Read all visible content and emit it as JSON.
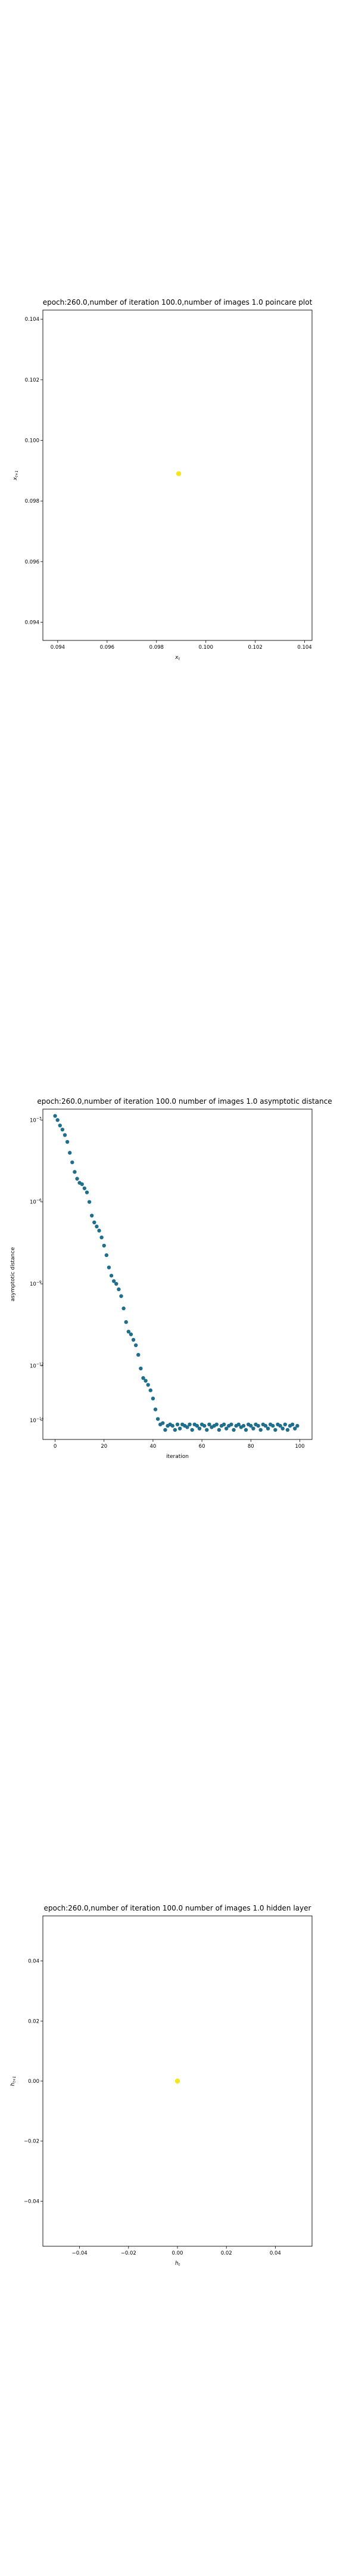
{
  "chart_data": [
    {
      "type": "scatter",
      "title": "epoch:260.0,number of iteration 100.0,number of images 1.0 poincare plot",
      "xlabel": "$x_t$",
      "ylabel": "$x_{t+1}$",
      "xlim": [
        0.0934,
        0.1043
      ],
      "ylim": [
        0.0934,
        0.1043
      ],
      "xticks": [
        "0.094",
        "0.096",
        "0.098",
        "0.100",
        "0.102",
        "0.104"
      ],
      "yticks": [
        "0.094",
        "0.096",
        "0.098",
        "0.100",
        "0.102",
        "0.104"
      ],
      "xtick_values": [
        0.094,
        0.096,
        0.098,
        0.1,
        0.102,
        0.104
      ],
      "ytick_values": [
        0.094,
        0.096,
        0.098,
        0.1,
        0.102,
        0.104
      ],
      "points": [
        {
          "x": 0.0989,
          "y": 0.0989
        }
      ],
      "point_color": "#f5e61a"
    },
    {
      "type": "scatter",
      "title": "epoch:260.0,number of iteration 100.0  number of images 1.0 asymptotic distance",
      "xlabel": "iteration",
      "ylabel": "asymptotic distance",
      "y_scale": "log",
      "xlim": [
        -5,
        105
      ],
      "ylim_log10": [
        -14.7,
        -2.6
      ],
      "xticks": [
        "0",
        "20",
        "40",
        "60",
        "80",
        "100"
      ],
      "xtick_values": [
        0,
        20,
        40,
        60,
        80,
        100
      ],
      "ytick_exponents": [
        -3,
        -6,
        -9,
        -12,
        -14
      ],
      "ytick_base": "10",
      "x": [
        0,
        1,
        2,
        3,
        4,
        5,
        6,
        7,
        8,
        9,
        10,
        11,
        12,
        13,
        14,
        15,
        16,
        17,
        18,
        19,
        20,
        21,
        22,
        23,
        24,
        25,
        26,
        27,
        28,
        29,
        30,
        31,
        32,
        33,
        34,
        35,
        36,
        37,
        38,
        39,
        40,
        41,
        42,
        43,
        44,
        45,
        46,
        47,
        48,
        49,
        50,
        51,
        52,
        53,
        54,
        55,
        56,
        57,
        58,
        59,
        60,
        61,
        62,
        63,
        64,
        65,
        66,
        67,
        68,
        69,
        70,
        71,
        72,
        73,
        74,
        75,
        76,
        77,
        78,
        79,
        80,
        81,
        82,
        83,
        84,
        85,
        86,
        87,
        88,
        89,
        90,
        91,
        92,
        93,
        94,
        95,
        96,
        97,
        98,
        99
      ],
      "y_log10": [
        -2.85,
        -3.0,
        -3.2,
        -3.35,
        -3.55,
        -3.8,
        -4.2,
        -4.55,
        -4.9,
        -5.15,
        -5.3,
        -5.35,
        -5.5,
        -5.65,
        -6.0,
        -6.5,
        -6.75,
        -6.9,
        -7.05,
        -7.3,
        -7.6,
        -7.95,
        -8.4,
        -8.7,
        -8.9,
        -9.0,
        -9.2,
        -9.45,
        -9.9,
        -10.4,
        -10.75,
        -10.85,
        -11.05,
        -11.25,
        -11.6,
        -12.1,
        -12.45,
        -12.55,
        -12.7,
        -12.9,
        -13.2,
        -13.6,
        -13.95,
        -14.15,
        -14.1,
        -14.35,
        -14.2,
        -14.15,
        -14.2,
        -14.35,
        -14.15,
        -14.3,
        -14.15,
        -14.2,
        -14.25,
        -14.15,
        -14.35,
        -14.15,
        -14.2,
        -14.3,
        -14.15,
        -14.2,
        -14.35,
        -14.15,
        -14.25,
        -14.2,
        -14.15,
        -14.35,
        -14.2,
        -14.15,
        -14.3,
        -14.2,
        -14.15,
        -14.35,
        -14.2,
        -14.15,
        -14.25,
        -14.2,
        -14.35,
        -14.15,
        -14.2,
        -14.3,
        -14.15,
        -14.2,
        -14.35,
        -14.15,
        -14.2,
        -14.3,
        -14.15,
        -14.2,
        -14.35,
        -14.15,
        -14.2,
        -14.3,
        -14.15,
        -14.35,
        -14.2,
        -14.15,
        -14.3,
        -14.2
      ],
      "point_color": "#1f6e8c"
    },
    {
      "type": "scatter",
      "title": "epoch:260.0,number of iteration 100.0  number of images 1.0 hidden layer",
      "xlabel": "$h_t$",
      "ylabel": "$h_{t+1}$",
      "xlim": [
        -0.055,
        0.055
      ],
      "ylim": [
        -0.055,
        0.055
      ],
      "xticks": [
        "−0.04",
        "−0.02",
        "0.00",
        "0.02",
        "0.04"
      ],
      "yticks": [
        "−0.04",
        "−0.02",
        "0.00",
        "0.02",
        "0.04"
      ],
      "xtick_values": [
        -0.04,
        -0.02,
        0.0,
        0.02,
        0.04
      ],
      "ytick_values": [
        -0.04,
        -0.02,
        0.0,
        0.02,
        0.04
      ],
      "points": [
        {
          "x": 0.0,
          "y": 0.0
        }
      ],
      "point_color": "#f5e61a"
    }
  ]
}
